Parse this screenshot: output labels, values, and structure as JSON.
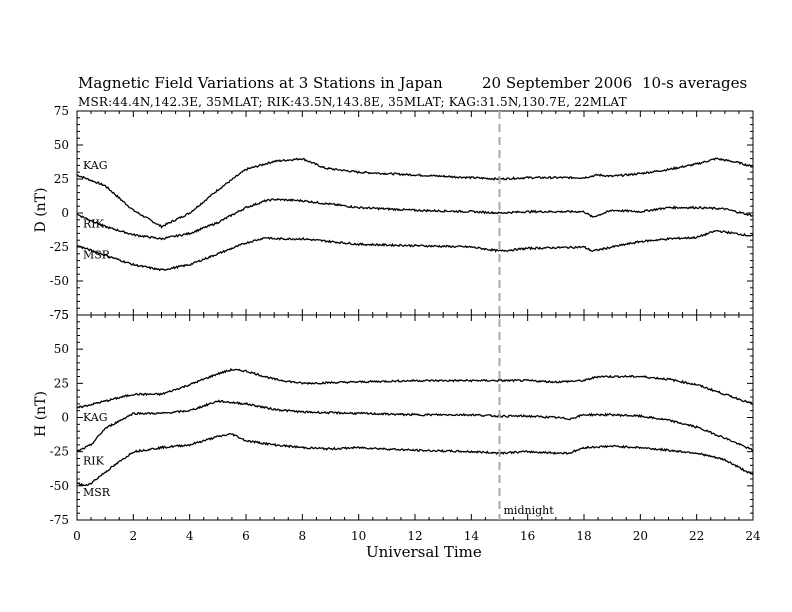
{
  "header": {
    "title": "Magnetic Field Variations at 3 Stations in Japan",
    "date": "20 September 2006",
    "averaging": "10-s averages",
    "stations_line": "MSR:44.4N,142.3E, 35MLAT;  RIK:43.5N,143.8E, 35MLAT;  KAG:31.5N,130.7E, 22MLAT"
  },
  "chart_data": [
    {
      "type": "line",
      "panel": "D",
      "ylabel": "D (nT)",
      "ylim": [
        -75,
        75
      ],
      "yticks": [
        75,
        50,
        25,
        0,
        -25,
        -50,
        -75
      ],
      "xlim": [
        0,
        24
      ],
      "series": [
        {
          "name": "KAG",
          "x": [
            0,
            1,
            2,
            3,
            4,
            5,
            6,
            7,
            8,
            8.8,
            10,
            12,
            14,
            15,
            16,
            17,
            18,
            18.5,
            19,
            20,
            21,
            22,
            22.7,
            23.5,
            24
          ],
          "values": [
            28,
            20,
            2,
            -10,
            0,
            17,
            32,
            38,
            40,
            33,
            30,
            28,
            26,
            25,
            26,
            26,
            26,
            28,
            27,
            29,
            32,
            36,
            40,
            37,
            34
          ]
        },
        {
          "name": "RIK",
          "x": [
            0,
            1,
            2,
            3,
            4,
            5,
            6,
            6.7,
            7,
            8,
            8.8,
            10,
            12,
            14,
            15,
            16,
            18,
            18.3,
            19,
            20,
            21,
            22,
            23,
            24
          ],
          "values": [
            -1,
            -10,
            -16,
            -19,
            -15,
            -7,
            4,
            9,
            10,
            9,
            7,
            4,
            2,
            1,
            0,
            1,
            1,
            -3,
            2,
            1,
            4,
            4,
            3,
            -2
          ]
        },
        {
          "name": "MSR",
          "x": [
            0,
            1,
            2,
            3,
            4,
            5,
            6,
            6.7,
            7,
            8,
            9,
            10,
            12,
            14,
            15,
            16,
            18,
            18.3,
            19,
            20,
            21,
            22,
            22.7,
            24
          ],
          "values": [
            -24,
            -31,
            -38,
            -42,
            -38,
            -30,
            -22,
            -18,
            -19,
            -19,
            -21,
            -23,
            -24,
            -25,
            -28,
            -26,
            -25,
            -28,
            -25,
            -21,
            -19,
            -18,
            -13,
            -17
          ]
        }
      ],
      "series_label_colors": "#000000"
    },
    {
      "type": "line",
      "panel": "H",
      "ylabel": "H (nT)",
      "ylim": [
        -75,
        75
      ],
      "yticks": [
        75,
        50,
        25,
        0,
        -25,
        -50,
        -75
      ],
      "xlim": [
        0,
        24
      ],
      "xticks": [
        0,
        2,
        4,
        6,
        8,
        10,
        12,
        14,
        16,
        18,
        20,
        22,
        24
      ],
      "xlabel": "Universal Time",
      "series": [
        {
          "name": "KAG",
          "x": [
            0,
            1,
            2,
            3,
            4,
            5,
            5.5,
            6,
            7,
            8,
            10,
            12,
            14,
            15,
            16,
            17,
            18,
            18.5,
            19,
            20,
            21,
            22,
            23,
            24
          ],
          "values": [
            7,
            12,
            17,
            17,
            24,
            32,
            35,
            34,
            28,
            25,
            26,
            27,
            27,
            27,
            27,
            26,
            27,
            30,
            30,
            30,
            28,
            24,
            17,
            10
          ]
        },
        {
          "name": "RIK",
          "x": [
            0,
            0.5,
            1,
            2,
            3,
            4,
            5,
            6,
            7,
            8,
            10,
            12,
            14,
            15,
            16,
            17,
            17.5,
            18,
            19,
            20,
            21,
            22,
            23,
            24
          ],
          "values": [
            -25,
            -20,
            -8,
            3,
            3,
            5,
            12,
            10,
            6,
            4,
            3,
            2,
            2,
            1,
            1,
            0,
            -1,
            2,
            2,
            1,
            -2,
            -7,
            -15,
            -24
          ]
        },
        {
          "name": "MSR",
          "x": [
            0,
            0.3,
            0.5,
            1,
            2,
            3,
            4,
            5,
            5.5,
            6,
            7,
            8,
            9,
            10,
            12,
            14,
            15,
            16,
            17,
            17.5,
            18,
            19,
            20,
            21,
            22,
            23,
            24
          ],
          "values": [
            -48,
            -50,
            -48,
            -40,
            -25,
            -22,
            -20,
            -14,
            -12,
            -17,
            -20,
            -22,
            -23,
            -22,
            -24,
            -25,
            -26,
            -25,
            -26,
            -26,
            -22,
            -21,
            -22,
            -24,
            -26,
            -31,
            -42
          ]
        }
      ]
    }
  ],
  "annotation": {
    "midnight_hour": 15,
    "midnight_label": "midnight"
  },
  "colors": {
    "trace": "#000000",
    "midnight_line": "#aaaaaa"
  }
}
